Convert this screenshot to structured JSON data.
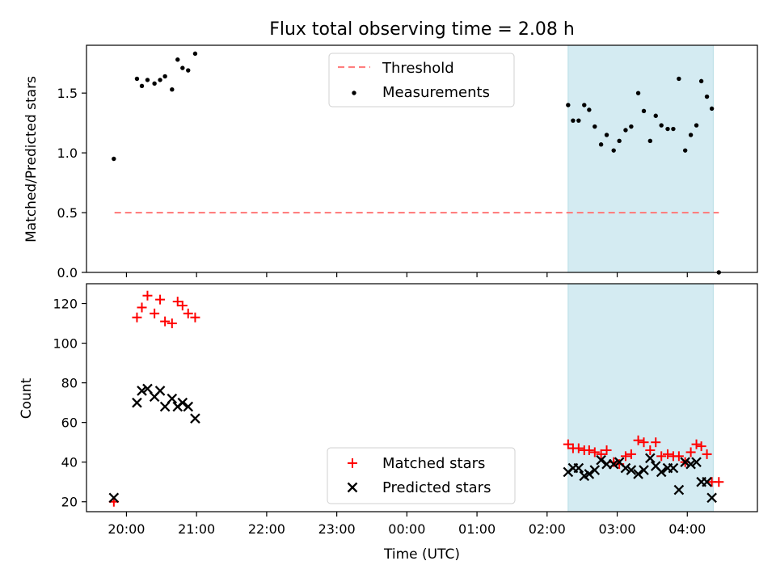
{
  "chart_data": {
    "title": "Flux total observing time = 2.08 h",
    "xlabel": "Time (UTC)",
    "x_ticks": [
      "20:00",
      "21:00",
      "22:00",
      "23:00",
      "00:00",
      "01:00",
      "02:00",
      "03:00",
      "04:00"
    ],
    "x_tick_hours": [
      20,
      21,
      22,
      23,
      24,
      25,
      26,
      27,
      28
    ],
    "xlim_hours": [
      19.43,
      29.0
    ],
    "shaded_span": {
      "start_hour": 26.3,
      "end_hour": 28.37,
      "color": "#d4ebf2"
    },
    "colors": {
      "threshold": "#ff7f7f",
      "measurements": "#000000",
      "matched": "#ff0000",
      "predicted": "#000000"
    },
    "panels": [
      {
        "type": "scatter",
        "ylabel": "Matched/Predicted stars",
        "ylim": [
          0,
          1.9
        ],
        "y_ticks": [
          "0.0",
          "0.5",
          "1.0",
          "1.5"
        ],
        "y_tick_values": [
          0.0,
          0.5,
          1.0,
          1.5
        ],
        "legend": {
          "placement": "top-center",
          "threshold_label": "Threshold",
          "measurements_label": "Measurements"
        },
        "threshold": {
          "value": 0.5,
          "x_start_hour": 19.83,
          "x_end_hour": 28.45
        },
        "measurements": {
          "x_hours": [
            19.82,
            20.15,
            20.22,
            20.3,
            20.4,
            20.48,
            20.55,
            20.65,
            20.73,
            20.8,
            20.88,
            20.98,
            26.3,
            26.37,
            26.45,
            26.53,
            26.6,
            26.68,
            26.77,
            26.85,
            26.95,
            27.03,
            27.12,
            27.2,
            27.3,
            27.38,
            27.47,
            27.55,
            27.63,
            27.72,
            27.8,
            27.88,
            27.97,
            28.05,
            28.13,
            28.2,
            28.28,
            28.35,
            28.45
          ],
          "values": [
            0.95,
            1.62,
            1.56,
            1.61,
            1.58,
            1.61,
            1.64,
            1.53,
            1.78,
            1.71,
            1.69,
            1.83,
            1.4,
            1.27,
            1.27,
            1.4,
            1.36,
            1.22,
            1.07,
            1.15,
            1.02,
            1.1,
            1.19,
            1.22,
            1.5,
            1.35,
            1.1,
            1.31,
            1.23,
            1.2,
            1.2,
            1.62,
            1.02,
            1.15,
            1.23,
            1.6,
            1.47,
            1.37,
            0.0
          ]
        }
      },
      {
        "type": "scatter",
        "ylabel": "Count",
        "ylim": [
          15,
          130
        ],
        "y_ticks": [
          "20",
          "40",
          "60",
          "80",
          "100",
          "120"
        ],
        "y_tick_values": [
          20,
          40,
          60,
          80,
          100,
          120
        ],
        "legend": {
          "placement": "bottom-center"
        },
        "series": [
          {
            "name": "Matched stars",
            "marker": "+",
            "x_hours": [
              19.82,
              20.15,
              20.22,
              20.3,
              20.4,
              20.48,
              20.55,
              20.65,
              20.73,
              20.8,
              20.88,
              20.98,
              26.3,
              26.37,
              26.45,
              26.53,
              26.6,
              26.68,
              26.77,
              26.85,
              26.95,
              27.03,
              27.12,
              27.2,
              27.3,
              27.38,
              27.47,
              27.55,
              27.63,
              27.72,
              27.8,
              27.88,
              27.97,
              28.05,
              28.13,
              28.2,
              28.28,
              28.35,
              28.45
            ],
            "values": [
              20,
              113,
              118,
              124,
              115,
              122,
              111,
              110,
              121,
              119,
              115,
              113,
              49,
              47,
              47,
              46,
              46,
              45,
              44,
              46,
              40,
              39,
              43,
              44,
              51,
              50,
              46,
              50,
              43,
              44,
              43,
              43,
              40,
              45,
              49,
              48,
              44,
              30,
              30
            ]
          },
          {
            "name": "Predicted stars",
            "marker": "x",
            "x_hours": [
              19.82,
              20.15,
              20.22,
              20.3,
              20.4,
              20.48,
              20.55,
              20.65,
              20.73,
              20.8,
              20.88,
              20.98,
              26.3,
              26.37,
              26.45,
              26.53,
              26.6,
              26.68,
              26.77,
              26.85,
              26.95,
              27.03,
              27.12,
              27.2,
              27.3,
              27.38,
              27.47,
              27.55,
              27.63,
              27.72,
              27.8,
              27.88,
              27.97,
              28.05,
              28.13,
              28.2,
              28.28,
              28.35
            ],
            "values": [
              22,
              70,
              76,
              77,
              73,
              76,
              68,
              72,
              68,
              70,
              68,
              62,
              35,
              37,
              37,
              33,
              34,
              36,
              41,
              39,
              39,
              40,
              37,
              36,
              34,
              36,
              42,
              38,
              35,
              37,
              37,
              26,
              40,
              39,
              40,
              30,
              30,
              22
            ]
          }
        ]
      }
    ]
  }
}
